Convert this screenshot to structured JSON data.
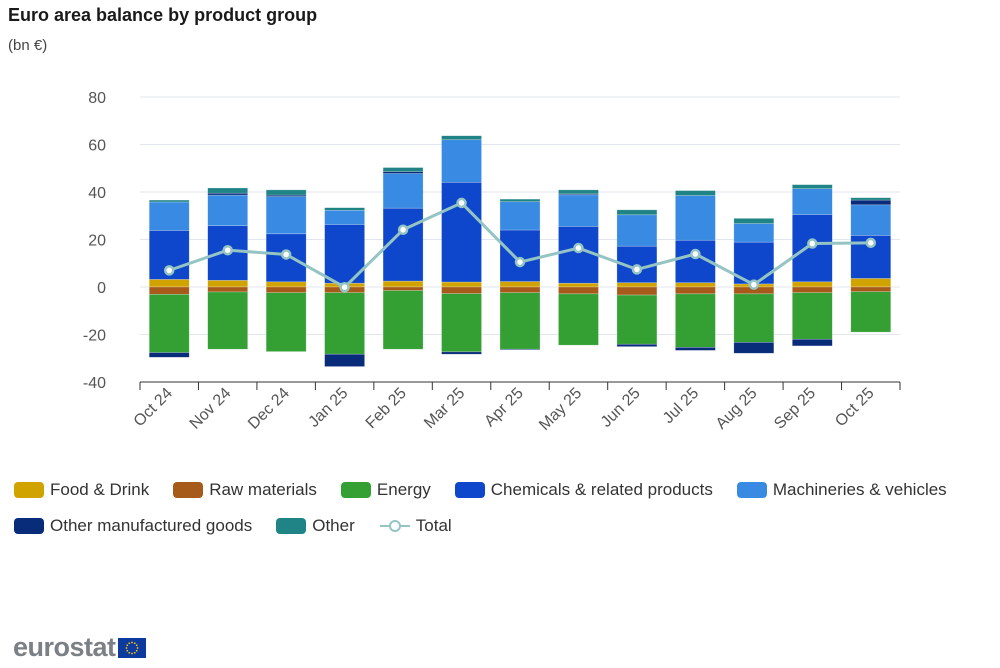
{
  "chart_data": {
    "type": "bar",
    "stacked": true,
    "title": "Euro area balance by product group",
    "subtitle": "(bn €)",
    "ylim": [
      -40,
      80
    ],
    "yticks": [
      80,
      60,
      40,
      20,
      0,
      -20,
      -40
    ],
    "grid": true,
    "legend_position": "bottom",
    "categories": [
      "Oct 24",
      "Nov 24",
      "Dec 24",
      "Jan 25",
      "Feb 25",
      "Mar 25",
      "Apr 25",
      "May 25",
      "Jun 25",
      "Jul 25",
      "Aug 25",
      "Sep 25",
      "Oct 25"
    ],
    "series": [
      {
        "name": "Food & Drink",
        "color": "#d0a300",
        "values": [
          3.2,
          2.8,
          2.2,
          1.6,
          2.5,
          2.1,
          2.3,
          1.6,
          1.8,
          1.8,
          1.3,
          2.2,
          3.6
        ]
      },
      {
        "name": "Raw materials",
        "color": "#a65b1a",
        "values": [
          -3.1,
          -2.1,
          -2.4,
          -2.4,
          -1.5,
          -2.8,
          -2.4,
          -2.9,
          -3.4,
          -2.9,
          -2.9,
          -2.4,
          -2.0
        ]
      },
      {
        "name": "Energy",
        "color": "#34a034",
        "values": [
          -24.5,
          -24.1,
          -24.8,
          -25.9,
          -24.7,
          -24.5,
          -23.8,
          -21.6,
          -20.7,
          -22.5,
          -20.4,
          -19.6,
          -17.0
        ]
      },
      {
        "name": "Chemicals & related products",
        "color": "#0e47cb",
        "values": [
          20.6,
          23.0,
          20.2,
          24.7,
          30.7,
          42.0,
          21.7,
          23.9,
          15.4,
          17.9,
          17.6,
          28.3,
          18.1
        ]
      },
      {
        "name": "Machineries & vehicles",
        "color": "#388ae2",
        "values": [
          12.0,
          12.9,
          15.7,
          6.0,
          14.6,
          17.9,
          11.9,
          13.3,
          13.2,
          18.8,
          7.8,
          10.9,
          12.9
        ]
      },
      {
        "name": "Other manufactured goods",
        "color": "#082b7a",
        "values": [
          -2.0,
          0.8,
          0.6,
          -5.2,
          0.8,
          -1.0,
          -0.3,
          0.4,
          -1.0,
          -1.3,
          -4.6,
          -2.8,
          2.0
        ]
      },
      {
        "name": "Other",
        "color": "#208486",
        "values": [
          0.8,
          2.2,
          2.2,
          1.1,
          1.7,
          1.7,
          1.1,
          1.7,
          2.1,
          2.1,
          2.2,
          1.7,
          1.0
        ]
      }
    ],
    "line": {
      "name": "Total",
      "color": "#94c4c4",
      "values": [
        7.0,
        15.5,
        13.7,
        -0.1,
        24.1,
        35.4,
        10.5,
        16.4,
        7.4,
        13.9,
        1.0,
        18.3,
        18.6
      ]
    }
  },
  "logo_text": "eurostat"
}
